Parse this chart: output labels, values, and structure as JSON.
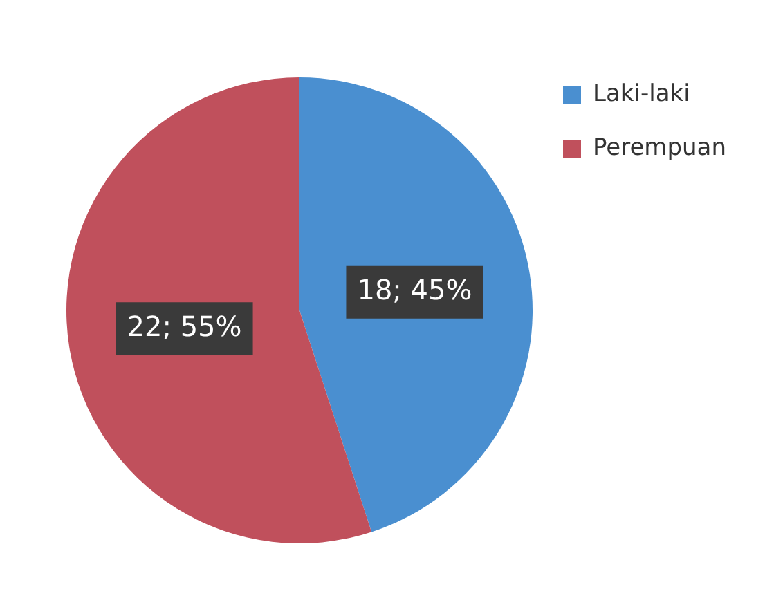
{
  "chart_data": {
    "type": "pie",
    "categories": [
      "Laki-laki",
      "Perempuan"
    ],
    "values": [
      18,
      22
    ],
    "colors": [
      "#4a8fd0",
      "#c0505c"
    ],
    "value_labels": [
      "18; 45%",
      "22; 55%"
    ],
    "legend": "right"
  }
}
